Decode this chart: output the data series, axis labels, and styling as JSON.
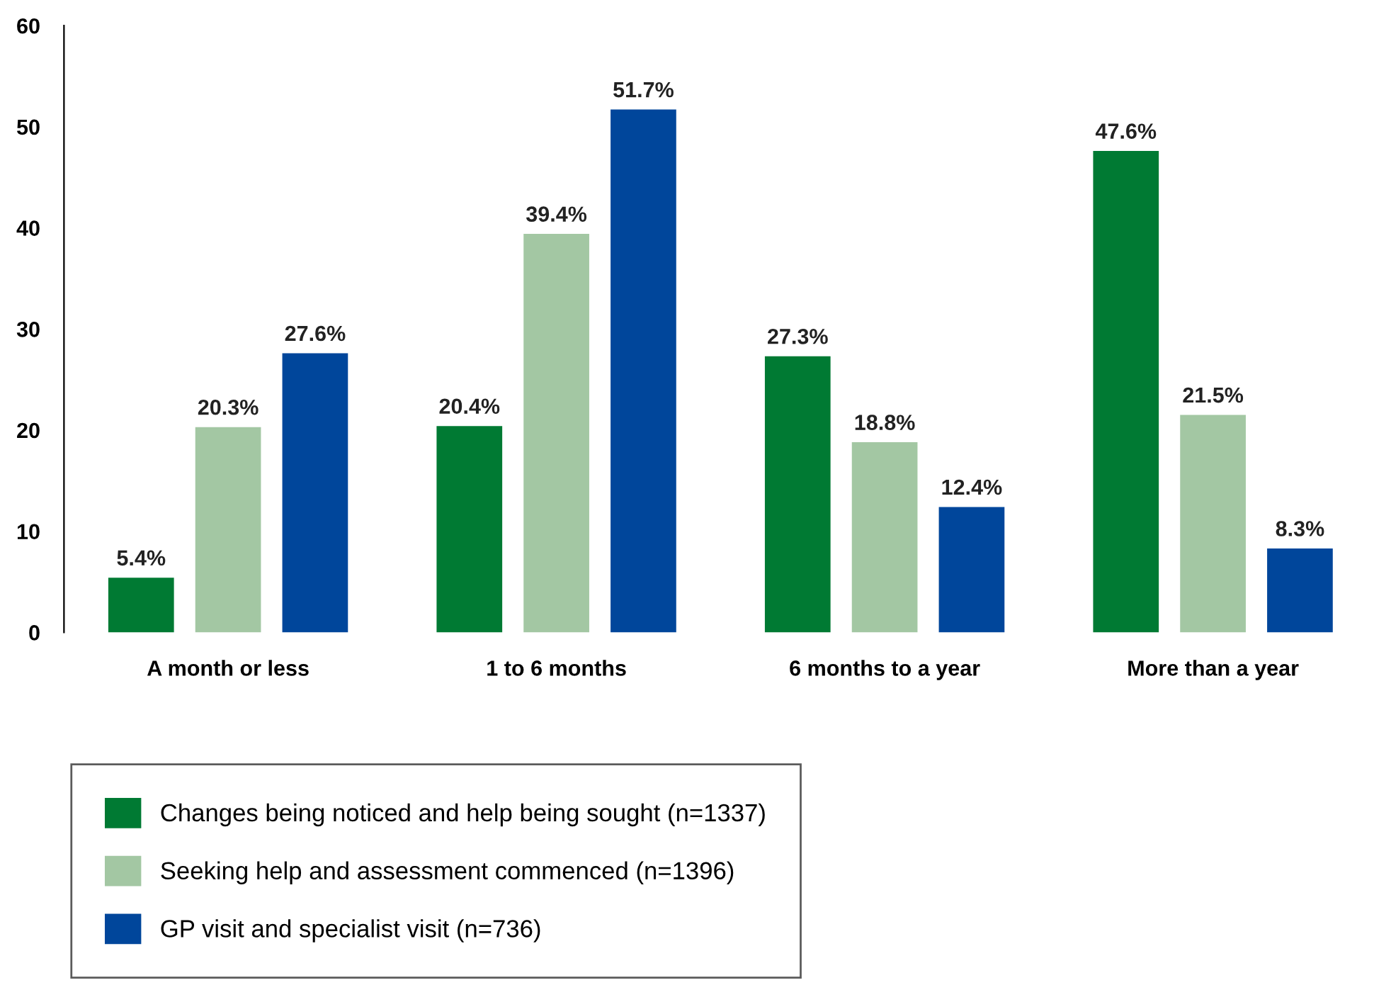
{
  "chart_data": {
    "type": "bar",
    "categories": [
      "A month or less",
      "1 to 6 months",
      "6 months to a year",
      "More than a year"
    ],
    "series": [
      {
        "name": "Changes being noticed and help being sought (n=1337)",
        "color": "#007a33",
        "values": [
          5.4,
          20.4,
          27.3,
          47.6
        ],
        "value_labels": [
          "5.4%",
          "20.4%",
          "27.3%",
          "47.6%"
        ]
      },
      {
        "name": "Seeking help and assessment commenced (n=1396)",
        "color": "#a3c7a3",
        "values": [
          20.3,
          39.4,
          18.8,
          21.5
        ],
        "value_labels": [
          "20.3%",
          "39.4%",
          "18.8%",
          "21.5%"
        ]
      },
      {
        "name": "GP visit and specialist visit (n=736)",
        "color": "#00469b",
        "values": [
          27.6,
          51.7,
          12.4,
          8.3
        ],
        "value_labels": [
          "27.6%",
          "51.7%",
          "12.4%",
          "8.3%"
        ]
      }
    ],
    "ylim": [
      0,
      60
    ],
    "yticks": [
      0,
      10,
      20,
      30,
      40,
      50,
      60
    ],
    "grid": false,
    "legend": "bottom"
  }
}
